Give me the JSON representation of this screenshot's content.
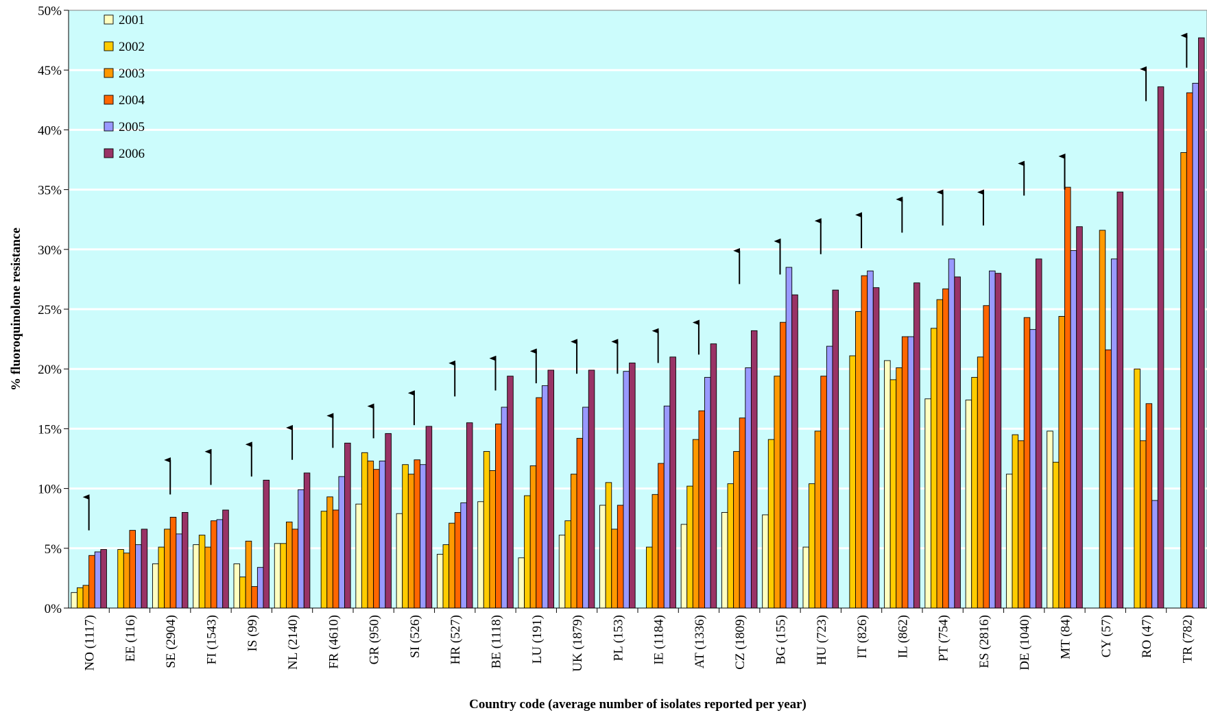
{
  "chart_data": {
    "type": "bar",
    "xlabel": "Country code (average number of isolates reported per year)",
    "ylabel": "% fluoroquinolone resistance",
    "ylim": [
      0,
      50
    ],
    "yticks": [
      "0%",
      "5%",
      "10%",
      "15%",
      "20%",
      "25%",
      "30%",
      "35%",
      "40%",
      "45%",
      "50%"
    ],
    "grid": true,
    "legend": "top-left",
    "background": "#ccfcfc",
    "categories": [
      "NO (1117)",
      "EE (116)",
      "SE (2904)",
      "FI (1543)",
      "IS (99)",
      "NL (2140)",
      "FR (4610)",
      "GR (950)",
      "SI (526)",
      "HR (527)",
      "BE (1118)",
      "LU (191)",
      "UK (1879)",
      "PL (153)",
      "IE (1184)",
      "AT (1336)",
      "CZ (1809)",
      "BG (155)",
      "HU (723)",
      "IT (826)",
      "IL (862)",
      "PT (754)",
      "ES (2816)",
      "DE (1040)",
      "MT (84)",
      "CY (57)",
      "RO (47)",
      "TR (782)"
    ],
    "series": [
      {
        "name": "2001",
        "color": "#ffffc0",
        "values": [
          1.3,
          null,
          3.7,
          5.3,
          3.7,
          5.4,
          null,
          8.7,
          7.9,
          4.5,
          8.9,
          4.2,
          6.1,
          8.6,
          null,
          7.0,
          8.0,
          7.8,
          5.1,
          null,
          20.7,
          17.5,
          17.4,
          11.2,
          14.8,
          null,
          null,
          null
        ]
      },
      {
        "name": "2002",
        "color": "#ffcc00",
        "values": [
          1.7,
          4.9,
          5.1,
          6.1,
          2.6,
          5.4,
          8.1,
          13.0,
          12.0,
          5.3,
          13.1,
          9.4,
          7.3,
          10.5,
          5.1,
          10.2,
          10.4,
          14.1,
          10.4,
          21.1,
          19.1,
          23.4,
          19.3,
          14.5,
          12.2,
          null,
          20.0,
          null
        ]
      },
      {
        "name": "2003",
        "color": "#ff9900",
        "values": [
          1.9,
          4.6,
          6.6,
          5.1,
          5.6,
          7.2,
          9.3,
          12.3,
          11.2,
          7.1,
          11.5,
          11.9,
          11.2,
          6.6,
          9.5,
          14.1,
          13.1,
          19.4,
          14.8,
          24.8,
          20.1,
          25.8,
          21.0,
          14.0,
          24.4,
          31.6,
          14.0,
          38.1
        ]
      },
      {
        "name": "2004",
        "color": "#ff6600",
        "values": [
          4.4,
          6.5,
          7.6,
          7.3,
          1.8,
          6.6,
          8.2,
          11.6,
          12.4,
          8.0,
          15.4,
          17.6,
          14.2,
          8.6,
          12.1,
          16.5,
          15.9,
          23.9,
          19.4,
          27.8,
          22.7,
          26.7,
          25.3,
          24.3,
          35.2,
          21.6,
          17.1,
          43.1
        ]
      },
      {
        "name": "2005",
        "color": "#9999ff",
        "values": [
          4.7,
          5.3,
          6.2,
          7.4,
          3.4,
          9.9,
          11.0,
          12.3,
          12.0,
          8.8,
          16.8,
          18.6,
          16.8,
          19.8,
          16.9,
          19.3,
          20.1,
          28.5,
          21.9,
          28.2,
          22.7,
          29.2,
          28.2,
          23.3,
          29.9,
          29.2,
          9.0,
          43.9
        ]
      },
      {
        "name": "2006",
        "color": "#993366",
        "values": [
          4.9,
          6.6,
          8.0,
          8.2,
          10.7,
          11.3,
          13.8,
          14.6,
          15.2,
          15.5,
          19.4,
          19.9,
          19.9,
          20.5,
          21.0,
          22.1,
          23.2,
          26.2,
          26.6,
          26.8,
          27.2,
          27.7,
          28.0,
          29.2,
          31.9,
          34.8,
          43.6,
          47.7
        ]
      }
    ],
    "annotations": {
      "description": "upward trend arrows",
      "arrows": [
        {
          "category": "NO (1117)",
          "from": 6.5,
          "to": 9.4
        },
        {
          "category": "SE (2904)",
          "from": 9.5,
          "to": 12.5
        },
        {
          "category": "FI (1543)",
          "from": 10.3,
          "to": 13.2
        },
        {
          "category": "IS (99)",
          "from": 11.0,
          "to": 13.8
        },
        {
          "category": "NL (2140)",
          "from": 12.4,
          "to": 15.2
        },
        {
          "category": "FR (4610)",
          "from": 13.4,
          "to": 16.2
        },
        {
          "category": "GR (950)",
          "from": 14.2,
          "to": 17.0
        },
        {
          "category": "SI (526)",
          "from": 15.3,
          "to": 18.1
        },
        {
          "category": "HR (527)",
          "from": 17.7,
          "to": 20.6
        },
        {
          "category": "BE (1118)",
          "from": 18.2,
          "to": 21.0
        },
        {
          "category": "LU (191)",
          "from": 18.8,
          "to": 21.6
        },
        {
          "category": "UK (1879)",
          "from": 19.6,
          "to": 22.4
        },
        {
          "category": "PL (153)",
          "from": 19.6,
          "to": 22.4
        },
        {
          "category": "IE (1184)",
          "from": 20.5,
          "to": 23.3
        },
        {
          "category": "AT (1336)",
          "from": 21.2,
          "to": 24.0
        },
        {
          "category": "CZ (1809)",
          "from": 27.1,
          "to": 30.0
        },
        {
          "category": "BG (155)",
          "from": 27.9,
          "to": 30.8
        },
        {
          "category": "HU (723)",
          "from": 29.6,
          "to": 32.5
        },
        {
          "category": "IT (826)",
          "from": 30.1,
          "to": 33.0
        },
        {
          "category": "IL (862)",
          "from": 31.4,
          "to": 34.3
        },
        {
          "category": "PT (754)",
          "from": 32.0,
          "to": 34.9
        },
        {
          "category": "ES (2816)",
          "from": 32.0,
          "to": 34.9
        },
        {
          "category": "DE (1040)",
          "from": 34.5,
          "to": 37.3
        },
        {
          "category": "MT (84)",
          "from": 35.0,
          "to": 37.9
        },
        {
          "category": "RO (47)",
          "from": 42.4,
          "to": 45.2
        },
        {
          "category": "TR (782)",
          "from": 45.2,
          "to": 48.0
        }
      ]
    }
  }
}
